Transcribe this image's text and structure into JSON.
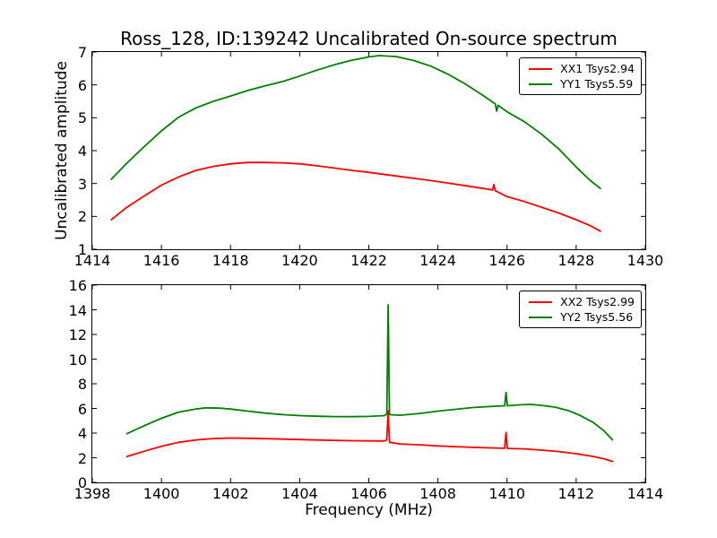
{
  "title": "Ross_128, ID:139242 Uncalibrated On-source spectrum",
  "colors": {
    "red": "#ff0000",
    "green": "#008000",
    "axis": "#000000",
    "background": "#ffffff"
  },
  "chart_data": [
    {
      "type": "line",
      "title": "Ross_128, ID:139242 Uncalibrated On-source spectrum",
      "xlabel": "",
      "ylabel": "Uncalibrated amplitude",
      "xlim": [
        1414,
        1430
      ],
      "ylim": [
        1,
        7
      ],
      "xticks": [
        1414,
        1416,
        1418,
        1420,
        1422,
        1424,
        1426,
        1428,
        1430
      ],
      "yticks": [
        1,
        2,
        3,
        4,
        5,
        6,
        7
      ],
      "grid": false,
      "legend": {
        "position": "upper right",
        "entries": [
          {
            "label": "XX1 Tsys2.94",
            "color": "#ff0000"
          },
          {
            "label": "YY1 Tsys5.59",
            "color": "#008000"
          }
        ]
      },
      "series": [
        {
          "name": "XX1 Tsys2.94",
          "color": "#ff0000",
          "points": [
            [
              1414.55,
              1.9
            ],
            [
              1415,
              2.28
            ],
            [
              1415.5,
              2.62
            ],
            [
              1416,
              2.95
            ],
            [
              1416.5,
              3.2
            ],
            [
              1417,
              3.4
            ],
            [
              1417.5,
              3.52
            ],
            [
              1418,
              3.6
            ],
            [
              1418.5,
              3.64
            ],
            [
              1419,
              3.64
            ],
            [
              1419.5,
              3.63
            ],
            [
              1420,
              3.6
            ],
            [
              1420.5,
              3.54
            ],
            [
              1421,
              3.47
            ],
            [
              1421.5,
              3.4
            ],
            [
              1422,
              3.34
            ],
            [
              1422.5,
              3.27
            ],
            [
              1423,
              3.2
            ],
            [
              1423.5,
              3.13
            ],
            [
              1424,
              3.06
            ],
            [
              1424.5,
              2.98
            ],
            [
              1425,
              2.9
            ],
            [
              1425.5,
              2.82
            ],
            [
              1425.58,
              2.8
            ],
            [
              1425.62,
              2.97
            ],
            [
              1425.66,
              2.78
            ],
            [
              1426,
              2.6
            ],
            [
              1426.5,
              2.45
            ],
            [
              1427,
              2.28
            ],
            [
              1427.5,
              2.1
            ],
            [
              1428,
              1.9
            ],
            [
              1428.4,
              1.72
            ],
            [
              1428.7,
              1.55
            ]
          ]
        },
        {
          "name": "YY1 Tsys5.59",
          "color": "#008000",
          "points": [
            [
              1414.55,
              3.13
            ],
            [
              1415,
              3.62
            ],
            [
              1415.5,
              4.12
            ],
            [
              1416,
              4.6
            ],
            [
              1416.5,
              5.02
            ],
            [
              1417,
              5.3
            ],
            [
              1417.5,
              5.5
            ],
            [
              1418,
              5.66
            ],
            [
              1418.5,
              5.83
            ],
            [
              1419,
              5.97
            ],
            [
              1419.5,
              6.1
            ],
            [
              1420,
              6.27
            ],
            [
              1420.5,
              6.45
            ],
            [
              1421,
              6.61
            ],
            [
              1421.5,
              6.75
            ],
            [
              1422,
              6.85
            ],
            [
              1422.3,
              6.89
            ],
            [
              1422.8,
              6.86
            ],
            [
              1423.3,
              6.74
            ],
            [
              1423.8,
              6.57
            ],
            [
              1424.3,
              6.32
            ],
            [
              1424.8,
              6.02
            ],
            [
              1425.3,
              5.68
            ],
            [
              1425.66,
              5.42
            ],
            [
              1425.7,
              5.2
            ],
            [
              1425.74,
              5.38
            ],
            [
              1426,
              5.18
            ],
            [
              1426.5,
              4.88
            ],
            [
              1427,
              4.5
            ],
            [
              1427.5,
              4.05
            ],
            [
              1428,
              3.5
            ],
            [
              1428.4,
              3.1
            ],
            [
              1428.7,
              2.85
            ]
          ]
        }
      ]
    },
    {
      "type": "line",
      "title": "",
      "xlabel": "Frequency (MHz)",
      "ylabel": "",
      "xlim": [
        1398,
        1414
      ],
      "ylim": [
        0,
        16
      ],
      "xticks": [
        1398,
        1400,
        1402,
        1404,
        1406,
        1408,
        1410,
        1412,
        1414
      ],
      "yticks": [
        0,
        2,
        4,
        6,
        8,
        10,
        12,
        14,
        16
      ],
      "grid": false,
      "legend": {
        "position": "upper right",
        "entries": [
          {
            "label": "XX2 Tsys2.99",
            "color": "#ff0000"
          },
          {
            "label": "YY2 Tsys5.56",
            "color": "#008000"
          }
        ]
      },
      "series": [
        {
          "name": "XX2 Tsys2.99",
          "color": "#ff0000",
          "points": [
            [
              1399,
              2.1
            ],
            [
              1399.5,
              2.52
            ],
            [
              1400,
              2.92
            ],
            [
              1400.5,
              3.25
            ],
            [
              1401,
              3.45
            ],
            [
              1401.5,
              3.56
            ],
            [
              1402,
              3.6
            ],
            [
              1402.5,
              3.58
            ],
            [
              1403,
              3.55
            ],
            [
              1403.5,
              3.51
            ],
            [
              1404,
              3.48
            ],
            [
              1404.5,
              3.44
            ],
            [
              1405,
              3.41
            ],
            [
              1405.5,
              3.38
            ],
            [
              1406,
              3.37
            ],
            [
              1406.45,
              3.36
            ],
            [
              1406.52,
              3.45
            ],
            [
              1406.56,
              5.8
            ],
            [
              1406.6,
              3.25
            ],
            [
              1406.9,
              3.12
            ],
            [
              1407.5,
              3.05
            ],
            [
              1408,
              2.96
            ],
            [
              1408.5,
              2.9
            ],
            [
              1409,
              2.84
            ],
            [
              1409.5,
              2.8
            ],
            [
              1409.93,
              2.77
            ],
            [
              1409.97,
              4.05
            ],
            [
              1410.01,
              2.76
            ],
            [
              1410.5,
              2.72
            ],
            [
              1411,
              2.62
            ],
            [
              1411.5,
              2.5
            ],
            [
              1412,
              2.33
            ],
            [
              1412.5,
              2.1
            ],
            [
              1412.8,
              1.92
            ],
            [
              1413.05,
              1.7
            ]
          ]
        },
        {
          "name": "YY2 Tsys5.56",
          "color": "#008000",
          "points": [
            [
              1399,
              3.95
            ],
            [
              1399.5,
              4.6
            ],
            [
              1400,
              5.2
            ],
            [
              1400.5,
              5.7
            ],
            [
              1401,
              5.96
            ],
            [
              1401.3,
              6.05
            ],
            [
              1401.7,
              6.02
            ],
            [
              1402,
              5.95
            ],
            [
              1402.5,
              5.78
            ],
            [
              1403,
              5.62
            ],
            [
              1403.5,
              5.5
            ],
            [
              1404,
              5.42
            ],
            [
              1404.5,
              5.37
            ],
            [
              1405,
              5.34
            ],
            [
              1405.5,
              5.33
            ],
            [
              1406,
              5.35
            ],
            [
              1406.45,
              5.42
            ],
            [
              1406.52,
              5.55
            ],
            [
              1406.56,
              14.4
            ],
            [
              1406.6,
              5.5
            ],
            [
              1406.9,
              5.45
            ],
            [
              1407.5,
              5.6
            ],
            [
              1408,
              5.78
            ],
            [
              1408.5,
              5.93
            ],
            [
              1409,
              6.07
            ],
            [
              1409.5,
              6.15
            ],
            [
              1409.93,
              6.22
            ],
            [
              1409.97,
              7.3
            ],
            [
              1410.01,
              6.22
            ],
            [
              1410.4,
              6.3
            ],
            [
              1410.7,
              6.33
            ],
            [
              1411,
              6.25
            ],
            [
              1411.4,
              6.1
            ],
            [
              1411.8,
              5.8
            ],
            [
              1412.1,
              5.45
            ],
            [
              1412.5,
              4.85
            ],
            [
              1412.8,
              4.2
            ],
            [
              1413.05,
              3.45
            ]
          ]
        }
      ]
    }
  ]
}
